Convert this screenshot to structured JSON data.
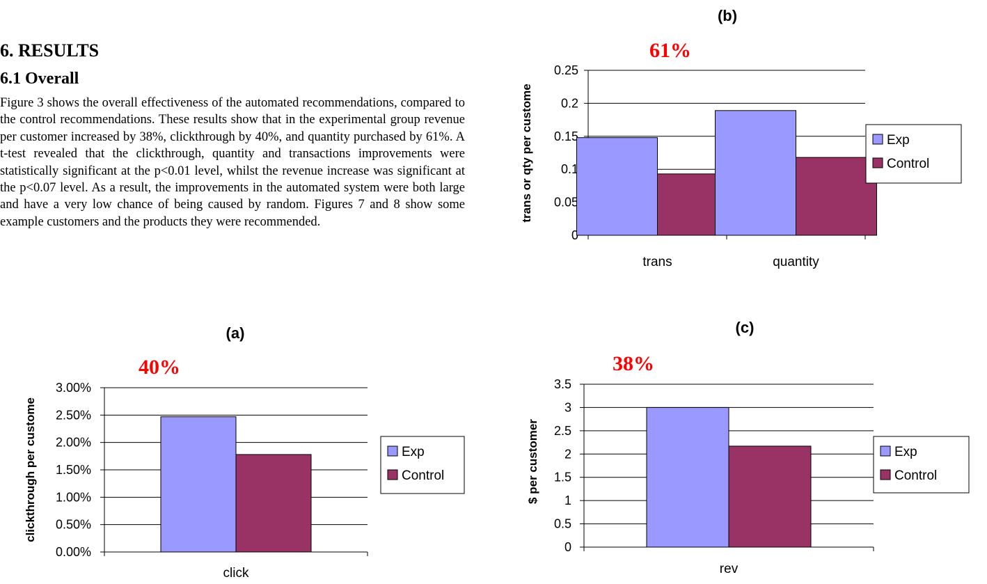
{
  "section": {
    "heading": "6. RESULTS",
    "subheading": "6.1 Overall",
    "paragraph": "Figure 3 shows the overall effectiveness of the automated recommendations, compared to the control recommendations. These results show that in the experimental group revenue per customer increased by 38%, clickthrough by 40%, and quantity purchased by 61%. A t-test revealed that the clickthrough, quantity and transactions improvements were statistically significant at the p<0.01 level, whilst the revenue increase was significant at the p<0.07 level. As a result, the improvements in the automated system were both large and have a very low chance of being caused by random. Figures 7 and 8 show some example customers and the products they were recommended."
  },
  "colors": {
    "exp": "#9999FF",
    "control": "#993366",
    "highlight": "#FF0000"
  },
  "chart_data": [
    {
      "id": "b",
      "type": "bar",
      "title": "(b)",
      "annotation": "61%",
      "ylabel": "trans or qty per custome",
      "categories": [
        "trans",
        "quantity"
      ],
      "series": [
        {
          "name": "Exp",
          "values": [
            0.148,
            0.189
          ]
        },
        {
          "name": "Control",
          "values": [
            0.093,
            0.118
          ]
        }
      ],
      "yticks": [
        "0",
        "0.05",
        "0.1",
        "0.15",
        "0.2",
        "0.25"
      ],
      "ylim": [
        0,
        0.25
      ],
      "grid": true,
      "legend": "right"
    },
    {
      "id": "a",
      "type": "bar",
      "title": "(a)",
      "annotation": "40%",
      "ylabel": "clickthrough per custome",
      "categories": [
        "click"
      ],
      "series": [
        {
          "name": "Exp",
          "values": [
            0.0247
          ]
        },
        {
          "name": "Control",
          "values": [
            0.0178
          ]
        }
      ],
      "yticks": [
        "0.00%",
        "0.50%",
        "1.00%",
        "1.50%",
        "2.00%",
        "2.50%",
        "3.00%"
      ],
      "ylim": [
        0,
        0.03
      ],
      "grid": true,
      "legend": "right"
    },
    {
      "id": "c",
      "type": "bar",
      "title": "(c)",
      "annotation": "38%",
      "ylabel": "$ per customer",
      "categories": [
        "rev"
      ],
      "series": [
        {
          "name": "Exp",
          "values": [
            3.0
          ]
        },
        {
          "name": "Control",
          "values": [
            2.17
          ]
        }
      ],
      "yticks": [
        "0",
        "0.5",
        "1",
        "1.5",
        "2",
        "2.5",
        "3",
        "3.5"
      ],
      "ylim": [
        0,
        3.5
      ],
      "grid": true,
      "legend": "right"
    }
  ]
}
